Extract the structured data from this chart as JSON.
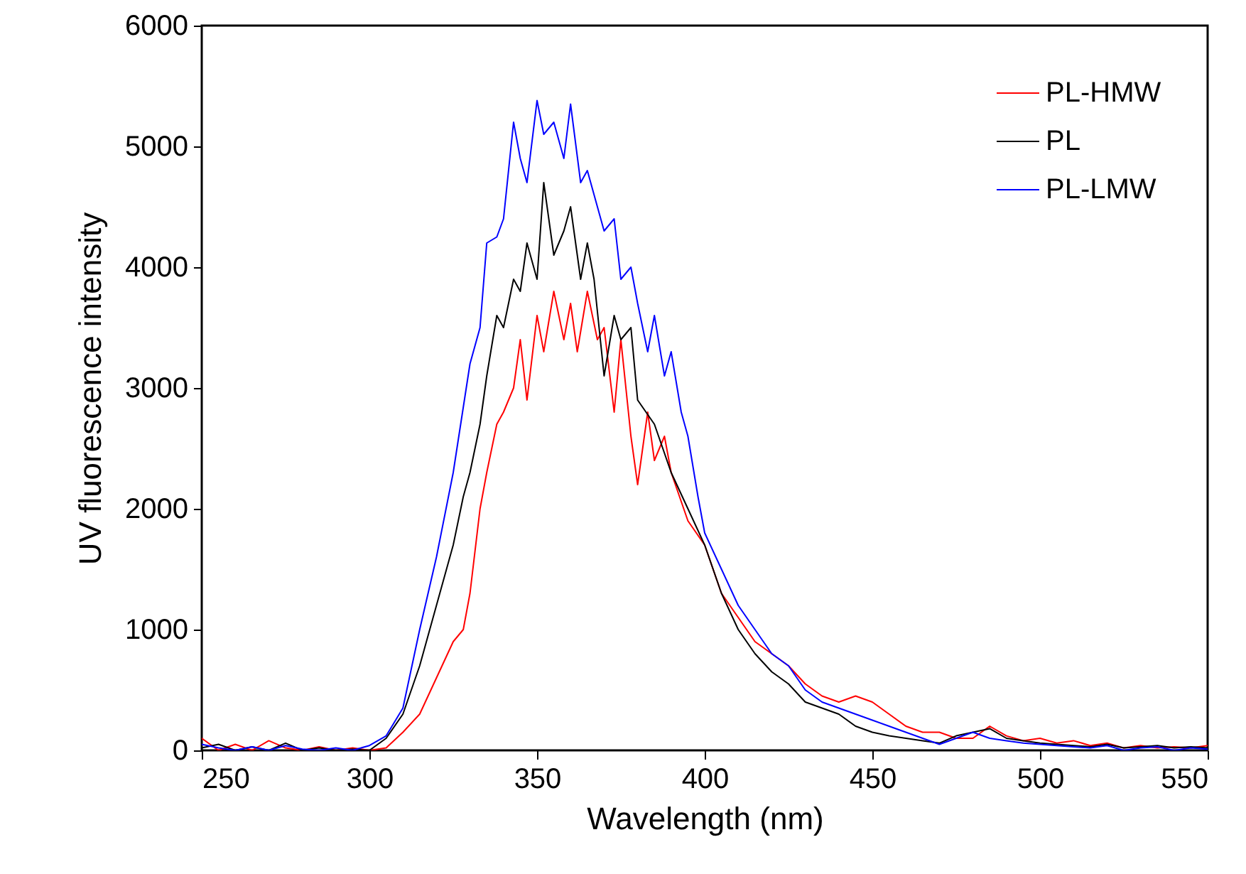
{
  "chart_data": {
    "type": "line",
    "xlabel": "Wavelength (nm)",
    "ylabel": "UV fluorescence intensity",
    "xlim": [
      250,
      550
    ],
    "xticks": [
      250,
      300,
      350,
      400,
      450,
      500,
      550
    ],
    "ylim": [
      0,
      6000
    ],
    "yticks": [
      0,
      1000,
      2000,
      3000,
      4000,
      5000,
      6000
    ],
    "grid": false,
    "legend": "top right",
    "line_style": "solid",
    "marker": "none",
    "series": [
      {
        "name": "PL-HMW",
        "color": "#ff0000",
        "x": [
          250,
          255,
          260,
          265,
          270,
          275,
          280,
          285,
          290,
          295,
          300,
          305,
          310,
          315,
          320,
          325,
          328,
          330,
          333,
          335,
          338,
          340,
          343,
          345,
          347,
          350,
          352,
          355,
          358,
          360,
          362,
          365,
          368,
          370,
          373,
          375,
          378,
          380,
          383,
          385,
          388,
          390,
          395,
          400,
          405,
          410,
          415,
          420,
          425,
          430,
          435,
          440,
          445,
          450,
          455,
          460,
          465,
          470,
          475,
          480,
          485,
          490,
          495,
          500,
          505,
          510,
          515,
          520,
          525,
          530,
          535,
          540,
          545,
          550
        ],
        "values": [
          100,
          0,
          50,
          0,
          80,
          20,
          0,
          30,
          0,
          20,
          0,
          20,
          150,
          300,
          600,
          900,
          1000,
          1300,
          2000,
          2300,
          2700,
          2800,
          3000,
          3400,
          2900,
          3600,
          3300,
          3800,
          3400,
          3700,
          3300,
          3800,
          3400,
          3500,
          2800,
          3400,
          2600,
          2200,
          2800,
          2400,
          2600,
          2300,
          1900,
          1700,
          1300,
          1100,
          900,
          800,
          700,
          550,
          450,
          400,
          450,
          400,
          300,
          200,
          150,
          150,
          100,
          100,
          200,
          120,
          80,
          100,
          60,
          80,
          40,
          60,
          20,
          40,
          20,
          30,
          20,
          40
        ]
      },
      {
        "name": "PL",
        "color": "#000000",
        "x": [
          250,
          255,
          260,
          265,
          270,
          275,
          280,
          285,
          290,
          295,
          300,
          305,
          310,
          315,
          320,
          325,
          328,
          330,
          333,
          335,
          338,
          340,
          343,
          345,
          347,
          350,
          352,
          355,
          358,
          360,
          363,
          365,
          367,
          370,
          373,
          375,
          378,
          380,
          385,
          390,
          395,
          400,
          405,
          410,
          415,
          420,
          425,
          430,
          435,
          440,
          445,
          450,
          455,
          460,
          465,
          470,
          475,
          480,
          485,
          490,
          495,
          500,
          505,
          510,
          515,
          520,
          525,
          530,
          535,
          540,
          545,
          550
        ],
        "values": [
          20,
          50,
          0,
          30,
          0,
          60,
          0,
          20,
          0,
          10,
          0,
          100,
          300,
          700,
          1200,
          1700,
          2100,
          2300,
          2700,
          3100,
          3600,
          3500,
          3900,
          3800,
          4200,
          3900,
          4700,
          4100,
          4300,
          4500,
          3900,
          4200,
          3900,
          3100,
          3600,
          3400,
          3500,
          2900,
          2700,
          2300,
          2000,
          1700,
          1300,
          1000,
          800,
          650,
          550,
          400,
          350,
          300,
          200,
          150,
          120,
          100,
          80,
          60,
          120,
          150,
          180,
          100,
          80,
          60,
          50,
          40,
          30,
          50,
          20,
          30,
          40,
          20,
          30,
          20
        ]
      },
      {
        "name": "PL-LMW",
        "color": "#0000ff",
        "x": [
          250,
          255,
          260,
          265,
          270,
          275,
          280,
          285,
          290,
          295,
          300,
          305,
          310,
          315,
          320,
          325,
          330,
          333,
          335,
          338,
          340,
          343,
          345,
          347,
          350,
          352,
          355,
          358,
          360,
          363,
          365,
          368,
          370,
          373,
          375,
          378,
          380,
          383,
          385,
          388,
          390,
          393,
          395,
          398,
          400,
          405,
          410,
          415,
          420,
          425,
          430,
          435,
          440,
          445,
          450,
          455,
          460,
          465,
          470,
          475,
          480,
          485,
          490,
          495,
          500,
          505,
          510,
          515,
          520,
          525,
          530,
          535,
          540,
          545,
          550
        ],
        "values": [
          50,
          20,
          0,
          30,
          0,
          40,
          10,
          0,
          20,
          0,
          40,
          120,
          350,
          1000,
          1600,
          2300,
          3200,
          3500,
          4200,
          4250,
          4400,
          5200,
          4900,
          4700,
          5380,
          5100,
          5200,
          4900,
          5350,
          4700,
          4800,
          4500,
          4300,
          4400,
          3900,
          4000,
          3700,
          3300,
          3600,
          3100,
          3300,
          2800,
          2600,
          2100,
          1800,
          1500,
          1200,
          1000,
          800,
          700,
          500,
          400,
          350,
          300,
          250,
          200,
          150,
          100,
          50,
          100,
          150,
          100,
          80,
          60,
          50,
          40,
          30,
          20,
          40,
          0,
          20,
          30,
          0,
          20,
          10
        ]
      }
    ]
  }
}
